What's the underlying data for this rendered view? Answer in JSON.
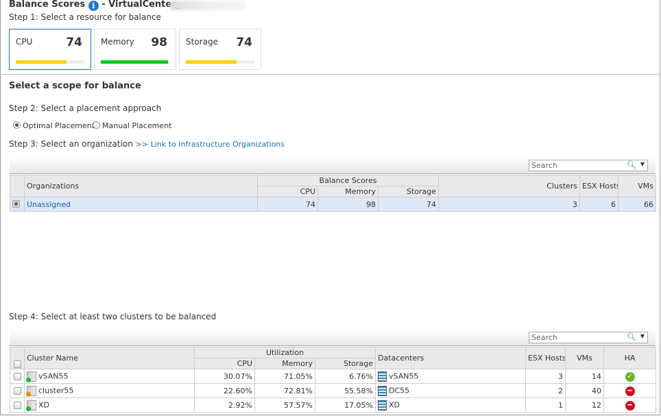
{
  "header": {
    "title": "Balance Scores",
    "title_suffix": "- VirtualCenter_",
    "info_icon": "info-icon"
  },
  "step1": "Step 1: Select a resource for balance",
  "resources": [
    {
      "label": "CPU",
      "score": "74",
      "fill_percent": 74,
      "color": "#f7d400",
      "selected": true
    },
    {
      "label": "Memory",
      "score": "98",
      "fill_percent": 98,
      "color": "#0ccc22",
      "selected": false
    },
    {
      "label": "Storage",
      "score": "74",
      "fill_percent": 74,
      "color": "#f7d400",
      "selected": false
    }
  ],
  "scope_title": "Select a scope for balance",
  "step2": "Step 2: Select a placement approach",
  "placement": {
    "optimal": "Optimal Placement",
    "manual": "Manual Placement",
    "selected": "optimal"
  },
  "step3": "Step 3: Select an organization",
  "step3_link": ">> Link to Infrastructure Organizations",
  "org_table": {
    "search_placeholder": "Search",
    "headers": {
      "organizations": "Organizations",
      "balance_scores": "Balance Scores",
      "cpu": "CPU",
      "memory": "Memory",
      "storage": "Storage",
      "clusters": "Clusters",
      "esx_hosts": "ESX Hosts",
      "vms": "VMs"
    },
    "rows": [
      {
        "name": "Unassigned",
        "cpu": "74",
        "memory": "98",
        "storage": "74",
        "clusters": "3",
        "esx_hosts": "6",
        "vms": "66",
        "selected": true
      }
    ]
  },
  "step4": "Step 4: Select at least two clusters to be balanced",
  "cluster_table": {
    "search_placeholder": "Search",
    "headers": {
      "cluster_name": "Cluster Name",
      "utilization": "Utilization",
      "cpu": "CPU",
      "memory": "Memory",
      "storage": "Storage",
      "datacenters": "Datacenters",
      "esx_hosts": "ESX Hosts",
      "vms": "VMs",
      "ha": "HA"
    },
    "rows": [
      {
        "name": "vSAN55",
        "status": "green",
        "cpu": "30.07%",
        "memory": "71.05%",
        "storage": "6.76%",
        "datacenter": "vSAN55",
        "esx_hosts": "3",
        "vms": "14",
        "ha": "ok"
      },
      {
        "name": "cluster55",
        "status": "warning",
        "cpu": "22.60%",
        "memory": "72.81%",
        "storage": "55.58%",
        "datacenter": "DC55",
        "esx_hosts": "2",
        "vms": "40",
        "ha": "disabled"
      },
      {
        "name": "XD",
        "status": "green",
        "cpu": "2.92%",
        "memory": "57.57%",
        "storage": "17.05%",
        "datacenter": "XD",
        "esx_hosts": "1",
        "vms": "12",
        "ha": "disabled"
      }
    ]
  }
}
